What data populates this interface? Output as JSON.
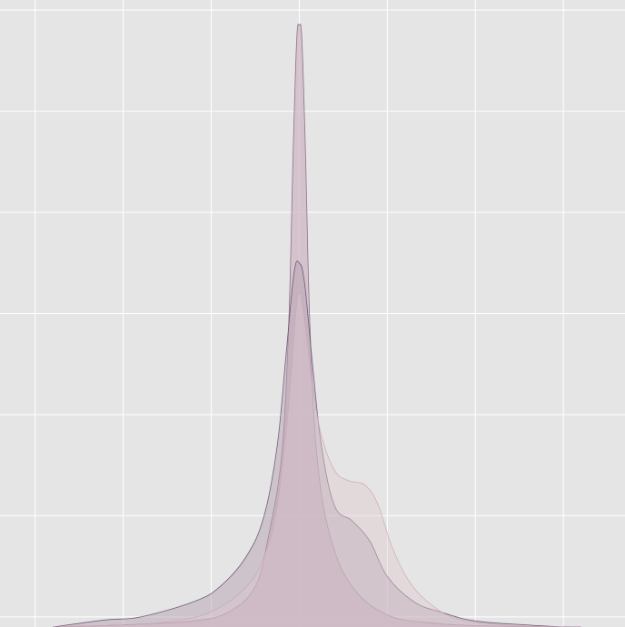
{
  "chart_data": {
    "type": "area",
    "title": "",
    "xlabel": "",
    "ylabel": "",
    "xlim": [
      -3.4,
      3.7
    ],
    "ylim": [
      0,
      6.2
    ],
    "x_gridlines": [
      -3,
      -2,
      -1,
      0,
      1,
      2,
      3
    ],
    "y_gridlines": [
      0.1,
      1.1,
      2.1,
      3.1,
      4.1,
      5.1,
      6.1
    ],
    "grid": true,
    "background_color": "#e5e5e5",
    "grid_color": "#ffffff",
    "series": [
      {
        "color": "#cdb4c4",
        "fill_opacity": 0.72,
        "stroke": "#7a5a74",
        "points": [
          [
            -2.8,
            0.0
          ],
          [
            -2.0,
            0.02
          ],
          [
            -1.2,
            0.06
          ],
          [
            -0.8,
            0.15
          ],
          [
            -0.5,
            0.4
          ],
          [
            -0.35,
            0.9
          ],
          [
            -0.2,
            1.7
          ],
          [
            -0.12,
            3.0
          ],
          [
            -0.07,
            4.7
          ],
          [
            -0.03,
            5.8
          ],
          [
            0.0,
            5.95
          ],
          [
            0.03,
            5.8
          ],
          [
            0.07,
            4.7
          ],
          [
            0.12,
            3.0
          ],
          [
            0.2,
            1.7
          ],
          [
            0.35,
            0.9
          ],
          [
            0.6,
            0.4
          ],
          [
            1.0,
            0.12
          ],
          [
            1.5,
            0.04
          ],
          [
            2.2,
            0.01
          ],
          [
            3.2,
            0.0
          ]
        ]
      },
      {
        "color": "#b4a2b2",
        "fill_opacity": 0.5,
        "stroke": "#574561",
        "points": [
          [
            -2.8,
            0.0
          ],
          [
            -2.2,
            0.07
          ],
          [
            -1.8,
            0.1
          ],
          [
            -1.2,
            0.25
          ],
          [
            -0.9,
            0.4
          ],
          [
            -0.6,
            0.7
          ],
          [
            -0.4,
            1.1
          ],
          [
            -0.25,
            1.8
          ],
          [
            -0.15,
            2.7
          ],
          [
            -0.06,
            3.5
          ],
          [
            0.0,
            3.6
          ],
          [
            0.06,
            3.4
          ],
          [
            0.15,
            2.6
          ],
          [
            0.25,
            1.8
          ],
          [
            0.4,
            1.2
          ],
          [
            0.6,
            1.05
          ],
          [
            0.8,
            0.85
          ],
          [
            1.0,
            0.5
          ],
          [
            1.3,
            0.25
          ],
          [
            1.6,
            0.15
          ],
          [
            2.0,
            0.06
          ],
          [
            2.6,
            0.02
          ],
          [
            3.0,
            0.0
          ]
        ]
      },
      {
        "color": "#ddc8cc",
        "fill_opacity": 0.42,
        "stroke": "#caa6b4",
        "points": [
          [
            -2.8,
            0.0
          ],
          [
            -2.0,
            0.02
          ],
          [
            -1.5,
            0.05
          ],
          [
            -1.0,
            0.15
          ],
          [
            -0.6,
            0.4
          ],
          [
            -0.4,
            0.7
          ],
          [
            -0.25,
            1.2
          ],
          [
            -0.12,
            2.2
          ],
          [
            -0.04,
            3.1
          ],
          [
            0.0,
            3.3
          ],
          [
            0.05,
            3.1
          ],
          [
            0.15,
            2.4
          ],
          [
            0.25,
            1.9
          ],
          [
            0.4,
            1.55
          ],
          [
            0.55,
            1.45
          ],
          [
            0.75,
            1.4
          ],
          [
            0.9,
            1.2
          ],
          [
            1.05,
            0.8
          ],
          [
            1.25,
            0.45
          ],
          [
            1.5,
            0.22
          ],
          [
            1.8,
            0.08
          ],
          [
            2.3,
            0.02
          ],
          [
            3.0,
            0.0
          ]
        ]
      }
    ]
  }
}
